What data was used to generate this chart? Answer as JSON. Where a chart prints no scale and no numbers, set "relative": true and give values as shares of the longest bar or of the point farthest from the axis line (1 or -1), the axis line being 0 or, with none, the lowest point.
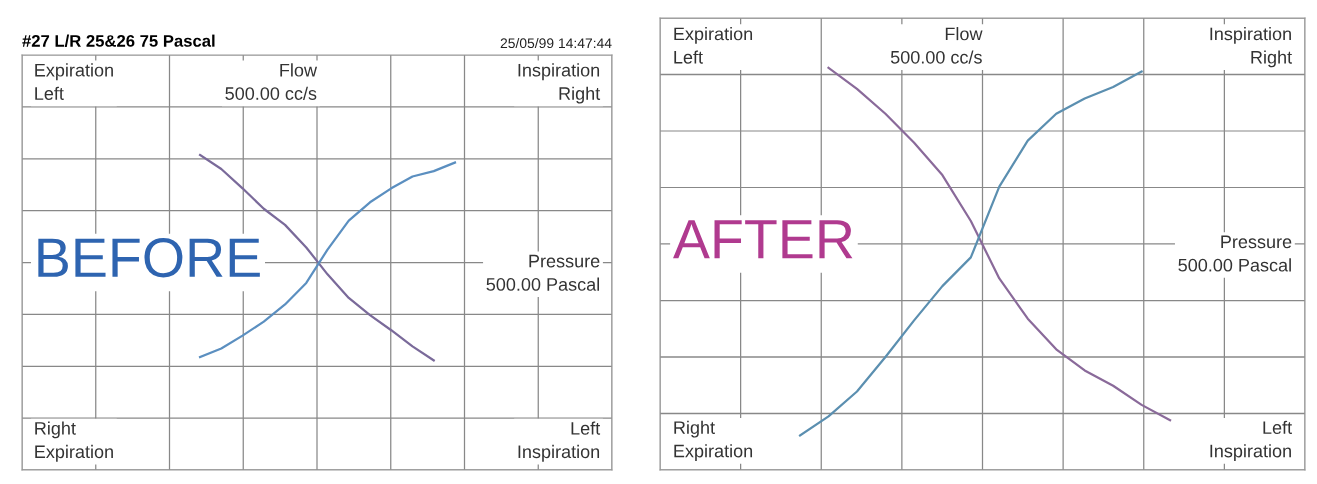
{
  "chart_data": [
    {
      "type": "line",
      "title": "#27 L/R 25&26 75 Pascal",
      "relative": true,
      "grid": true,
      "tick_labels": false,
      "line_style": "solid",
      "annotations": [
        "Expiration\nLeft",
        "Flow\n500.00 cc/s",
        "Inspiration\nRight",
        "Pressure\n500.00 Pascal",
        "Right\nExpiration",
        "Left\nInspiration",
        "BEFORE",
        "25/05/99 14:47:44"
      ],
      "categories": [
        null,
        null,
        null,
        null,
        null,
        null,
        null,
        null,
        null,
        null,
        null,
        null,
        null
      ],
      "series": [
        {
          "color": "#7a6a9a",
          "values": [
            1.0,
            0.87,
            0.69,
            0.5,
            0.35,
            0.14,
            -0.11,
            -0.33,
            -0.49,
            -0.63,
            -0.78,
            -0.91,
            null
          ]
        },
        {
          "color": "#5b8fc0",
          "values": [
            -0.88,
            -0.8,
            -0.68,
            -0.55,
            -0.39,
            -0.19,
            0.12,
            0.39,
            0.56,
            0.69,
            0.8,
            0.85,
            0.93
          ]
        }
      ]
    },
    {
      "type": "line",
      "relative": true,
      "grid": true,
      "tick_labels": false,
      "line_style": "solid",
      "annotations": [
        "Expiration\nLeft",
        "Flow\n500.00 cc/s",
        "Inspiration\nRight",
        "Pressure\n500.00 Pascal",
        "Right\nExpiration",
        "Left\nInspiration",
        "AFTER"
      ],
      "categories": [
        null,
        null,
        null,
        null,
        null,
        null,
        null,
        null,
        null,
        null,
        null,
        null,
        null,
        null
      ],
      "series": [
        {
          "color": "#8a6a9a",
          "values": [
            null,
            0.92,
            0.81,
            0.68,
            0.53,
            0.36,
            0.12,
            -0.18,
            -0.39,
            -0.55,
            -0.66,
            -0.74,
            -0.84,
            -0.92
          ]
        },
        {
          "color": "#5b8fb0",
          "values": [
            -1.0,
            -0.9,
            -0.77,
            -0.59,
            -0.4,
            -0.22,
            -0.07,
            0.3,
            0.54,
            0.68,
            0.76,
            0.82,
            0.9,
            null
          ]
        }
      ]
    }
  ]
}
